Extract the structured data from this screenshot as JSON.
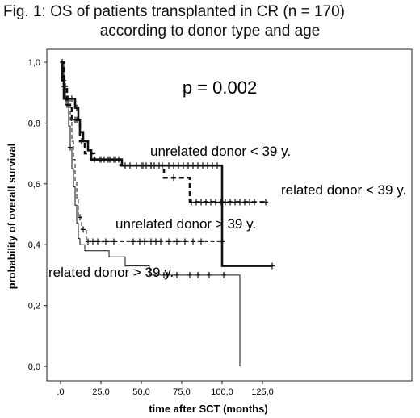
{
  "chart_data": {
    "type": "line",
    "subtype": "kaplan-meier",
    "title_line1": "Fig. 1: OS of patients transplanted in CR (n = 170)",
    "title_line2": "according to donor type and age",
    "annotation": "p = 0.002",
    "xlabel": "time after SCT (months)",
    "ylabel": "probability of overall survival",
    "xlim": [
      0,
      140
    ],
    "ylim": [
      0,
      1.05
    ],
    "x_ticks": [
      {
        "v": 0,
        "label": ",0"
      },
      {
        "v": 25,
        "label": "25,0"
      },
      {
        "v": 50,
        "label": "50,0"
      },
      {
        "v": 75,
        "label": "75,0"
      },
      {
        "v": 100,
        "label": "100,0"
      },
      {
        "v": 125,
        "label": "125,0"
      }
    ],
    "y_ticks": [
      {
        "v": 0.0,
        "label": "0,0"
      },
      {
        "v": 0.2,
        "label": "0,2"
      },
      {
        "v": 0.4,
        "label": "0,4"
      },
      {
        "v": 0.6,
        "label": "0,6"
      },
      {
        "v": 0.8,
        "label": "0,8"
      },
      {
        "v": 1.0,
        "label": "1,0"
      }
    ],
    "grid": false,
    "series": [
      {
        "name": "unrelated donor < 39 y.",
        "style": "thick-solid",
        "steps": [
          [
            0,
            1.0
          ],
          [
            1,
            0.94
          ],
          [
            2,
            0.88
          ],
          [
            9,
            0.85
          ],
          [
            11,
            0.81
          ],
          [
            12,
            0.77
          ],
          [
            14,
            0.74
          ],
          [
            17,
            0.71
          ],
          [
            19,
            0.68
          ],
          [
            38,
            0.66
          ],
          [
            100,
            0.66
          ],
          [
            100,
            0.33
          ],
          [
            131,
            0.33
          ]
        ],
        "censored_x": [
          3,
          5,
          7,
          10,
          21,
          24,
          27,
          29,
          31,
          33,
          36,
          40,
          43,
          47,
          51,
          53,
          56,
          58,
          61,
          63,
          67,
          70,
          73,
          76,
          79,
          82,
          85,
          88,
          91,
          94,
          97,
          131
        ]
      },
      {
        "name": "related donor < 39 y.",
        "style": "thick-dashed",
        "steps": [
          [
            0,
            1.0
          ],
          [
            2,
            0.92
          ],
          [
            4,
            0.86
          ],
          [
            7,
            0.81
          ],
          [
            12,
            0.74
          ],
          [
            15,
            0.7
          ],
          [
            21,
            0.68
          ],
          [
            35,
            0.68
          ],
          [
            37,
            0.66
          ],
          [
            63,
            0.66
          ],
          [
            64,
            0.62
          ],
          [
            78,
            0.62
          ],
          [
            80,
            0.54
          ],
          [
            127,
            0.54
          ]
        ],
        "censored_x": [
          2,
          3,
          5,
          9,
          10,
          13,
          25,
          30,
          34,
          50,
          56,
          70,
          81,
          84,
          87,
          90,
          93,
          96,
          99,
          102,
          105,
          108,
          111,
          114,
          117,
          120,
          127
        ]
      },
      {
        "name": "unrelated donor > 39 y.",
        "style": "thin-dashed",
        "steps": [
          [
            0,
            1.0
          ],
          [
            2,
            0.94
          ],
          [
            3,
            0.88
          ],
          [
            6,
            0.81
          ],
          [
            7,
            0.74
          ],
          [
            8,
            0.68
          ],
          [
            9,
            0.61
          ],
          [
            10,
            0.55
          ],
          [
            11,
            0.49
          ],
          [
            13,
            0.45
          ],
          [
            16,
            0.41
          ],
          [
            100,
            0.41
          ]
        ],
        "censored_x": [
          2,
          4,
          12,
          14,
          17,
          20,
          23,
          28,
          33,
          45,
          49,
          52,
          56,
          59,
          62,
          67,
          72,
          77,
          82,
          87,
          100
        ]
      },
      {
        "name": "related donor > 39 y.",
        "style": "thin-solid",
        "steps": [
          [
            0,
            1.0
          ],
          [
            2,
            0.92
          ],
          [
            3,
            0.86
          ],
          [
            5,
            0.79
          ],
          [
            6,
            0.72
          ],
          [
            7,
            0.65
          ],
          [
            8,
            0.59
          ],
          [
            9,
            0.53
          ],
          [
            10,
            0.47
          ],
          [
            11,
            0.42
          ],
          [
            12,
            0.4
          ],
          [
            15,
            0.38
          ],
          [
            25,
            0.38
          ],
          [
            30,
            0.36
          ],
          [
            40,
            0.33
          ],
          [
            54,
            0.33
          ],
          [
            55,
            0.3
          ],
          [
            60,
            0.3
          ],
          [
            101,
            0.3
          ],
          [
            111,
            0.3
          ],
          [
            111,
            0.0
          ]
        ],
        "censored_x": [
          1,
          4,
          6,
          64,
          66,
          72,
          80,
          85,
          92,
          101
        ]
      }
    ]
  }
}
